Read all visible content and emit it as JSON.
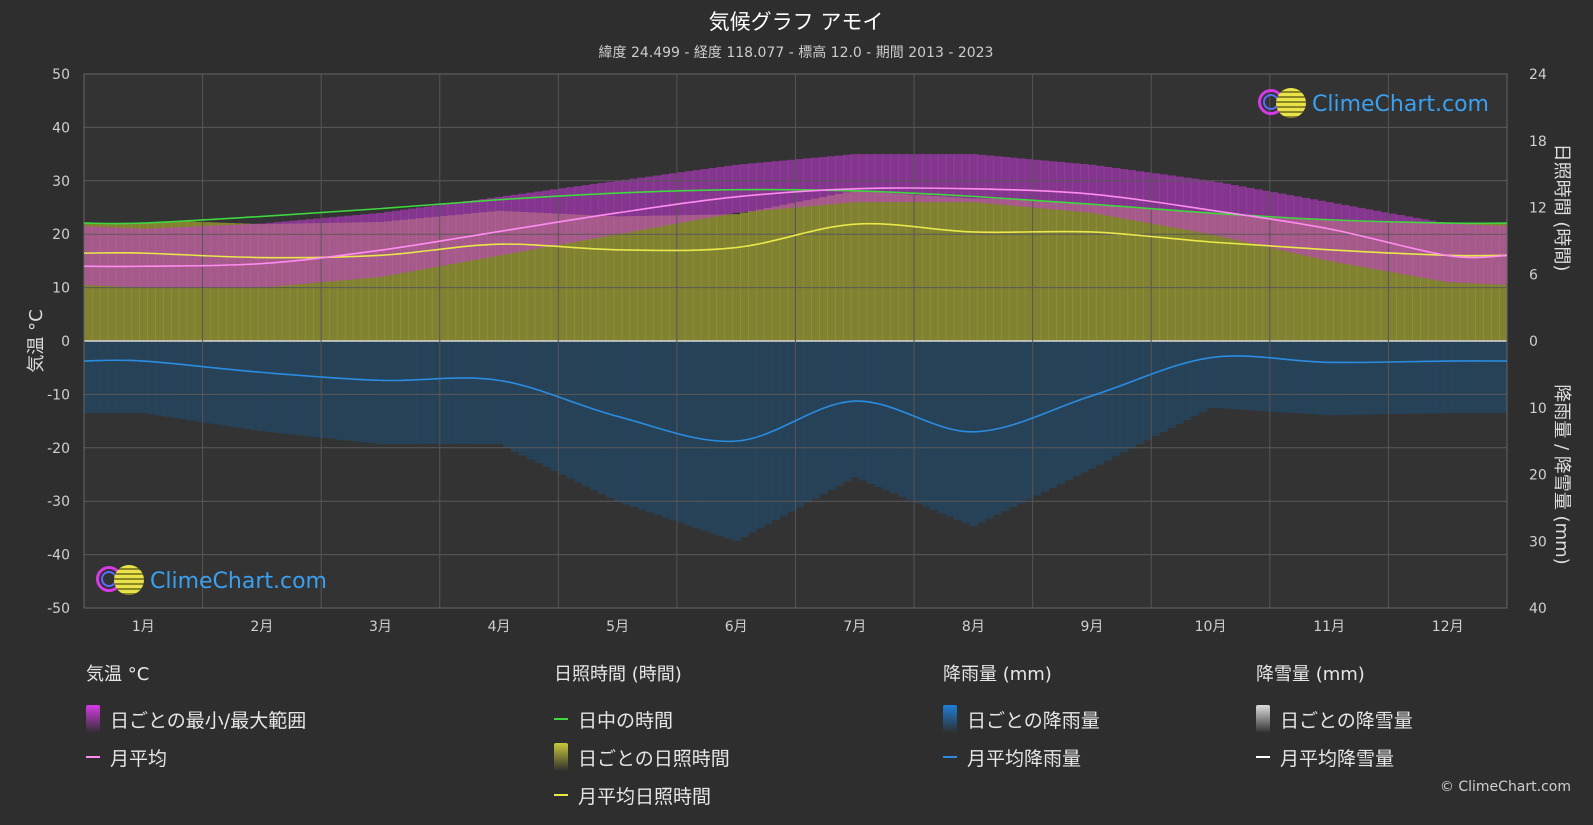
{
  "header": {
    "title": "気候グラフ アモイ",
    "subtitle": "緯度 24.499 - 経度 118.077 - 標高 12.0 - 期間 2013 - 2023"
  },
  "logo": {
    "text": "ClimeChart.com"
  },
  "copyright": "© ClimeChart.com",
  "colors": {
    "background": "#2e2e2e",
    "temp_range": "#d63ae6",
    "temp_avg": "#ff8cf0",
    "daylight": "#3fd63f",
    "sunshine_bar": "#a8a832",
    "sunshine_avg": "#e8e84a",
    "rain_bar": "#1e6ea6",
    "rain_avg": "#2a8ce0",
    "snow_avg": "#ffffff"
  },
  "chart_data": {
    "type": "line",
    "x": [
      "1月",
      "2月",
      "3月",
      "4月",
      "5月",
      "6月",
      "7月",
      "8月",
      "9月",
      "10月",
      "11月",
      "12月"
    ],
    "axes": {
      "left": {
        "label": "気温 °C",
        "ticks": [
          50,
          40,
          30,
          20,
          10,
          0,
          -10,
          -20,
          -30,
          -40,
          -50
        ],
        "ylim": [
          -50,
          50
        ]
      },
      "right_top": {
        "label": "日照時間 (時間)",
        "ticks": [
          24,
          18,
          12,
          6,
          0
        ],
        "ylim": [
          0,
          24
        ]
      },
      "right_bottom": {
        "label": "降雨量 / 降雪量 (mm)",
        "ticks": [
          0,
          10,
          20,
          30,
          40
        ],
        "ylim": [
          0,
          40
        ]
      }
    },
    "grid": true,
    "series": [
      {
        "name": "月平均",
        "axis": "left",
        "values": [
          14,
          14.5,
          17,
          20.5,
          24,
          27,
          28.5,
          28.5,
          27.5,
          24.5,
          21,
          16
        ]
      },
      {
        "name": "日中の時間",
        "axis": "right_top",
        "values": [
          10.6,
          11.2,
          11.9,
          12.7,
          13.3,
          13.6,
          13.5,
          13.0,
          12.3,
          11.5,
          10.9,
          10.6
        ]
      },
      {
        "name": "月平均日照時間",
        "axis": "right_top",
        "values": [
          7.9,
          7.5,
          7.7,
          8.7,
          8.2,
          8.4,
          10.5,
          9.8,
          9.8,
          8.9,
          8.2,
          7.7
        ]
      },
      {
        "name": "月平均降雨量",
        "axis": "right_bottom",
        "values": [
          3.0,
          4.7,
          5.9,
          5.9,
          11.3,
          15.0,
          9.0,
          13.6,
          8.2,
          2.5,
          3.2,
          3.0
        ]
      },
      {
        "name": "月平均降雪量",
        "axis": "right_bottom",
        "values": [
          0,
          0,
          0,
          0,
          0,
          0,
          0,
          0,
          0,
          0,
          0,
          0
        ]
      }
    ],
    "temp_range": {
      "min": [
        10,
        10,
        12,
        16,
        20,
        24,
        26,
        26,
        24,
        20,
        15,
        11
      ],
      "max": [
        19,
        20,
        22,
        25,
        28,
        31,
        33,
        33,
        31,
        28,
        24,
        20
      ]
    }
  },
  "legend": {
    "groups": [
      {
        "title": "気温 °C",
        "items": [
          {
            "label": "日ごとの最小/最大範囲",
            "kind": "box",
            "color": "#d63ae6"
          },
          {
            "label": "月平均",
            "kind": "line",
            "color": "#ff8cf0"
          }
        ]
      },
      {
        "title": "日照時間 (時間)",
        "items": [
          {
            "label": "日中の時間",
            "kind": "line",
            "color": "#3fd63f"
          },
          {
            "label": "日ごとの日照時間",
            "kind": "box",
            "color": "#c8c83a"
          },
          {
            "label": "月平均日照時間",
            "kind": "line",
            "color": "#e8e84a"
          }
        ]
      },
      {
        "title": "降雨量 (mm)",
        "items": [
          {
            "label": "日ごとの降雨量",
            "kind": "box",
            "color": "#1e7ed6"
          },
          {
            "label": "月平均降雨量",
            "kind": "line",
            "color": "#2a8ce0"
          }
        ]
      },
      {
        "title": "降雪量 (mm)",
        "items": [
          {
            "label": "日ごとの降雪量",
            "kind": "box",
            "color": "#dddddd"
          },
          {
            "label": "月平均降雪量",
            "kind": "line",
            "color": "#ffffff"
          }
        ]
      }
    ]
  }
}
